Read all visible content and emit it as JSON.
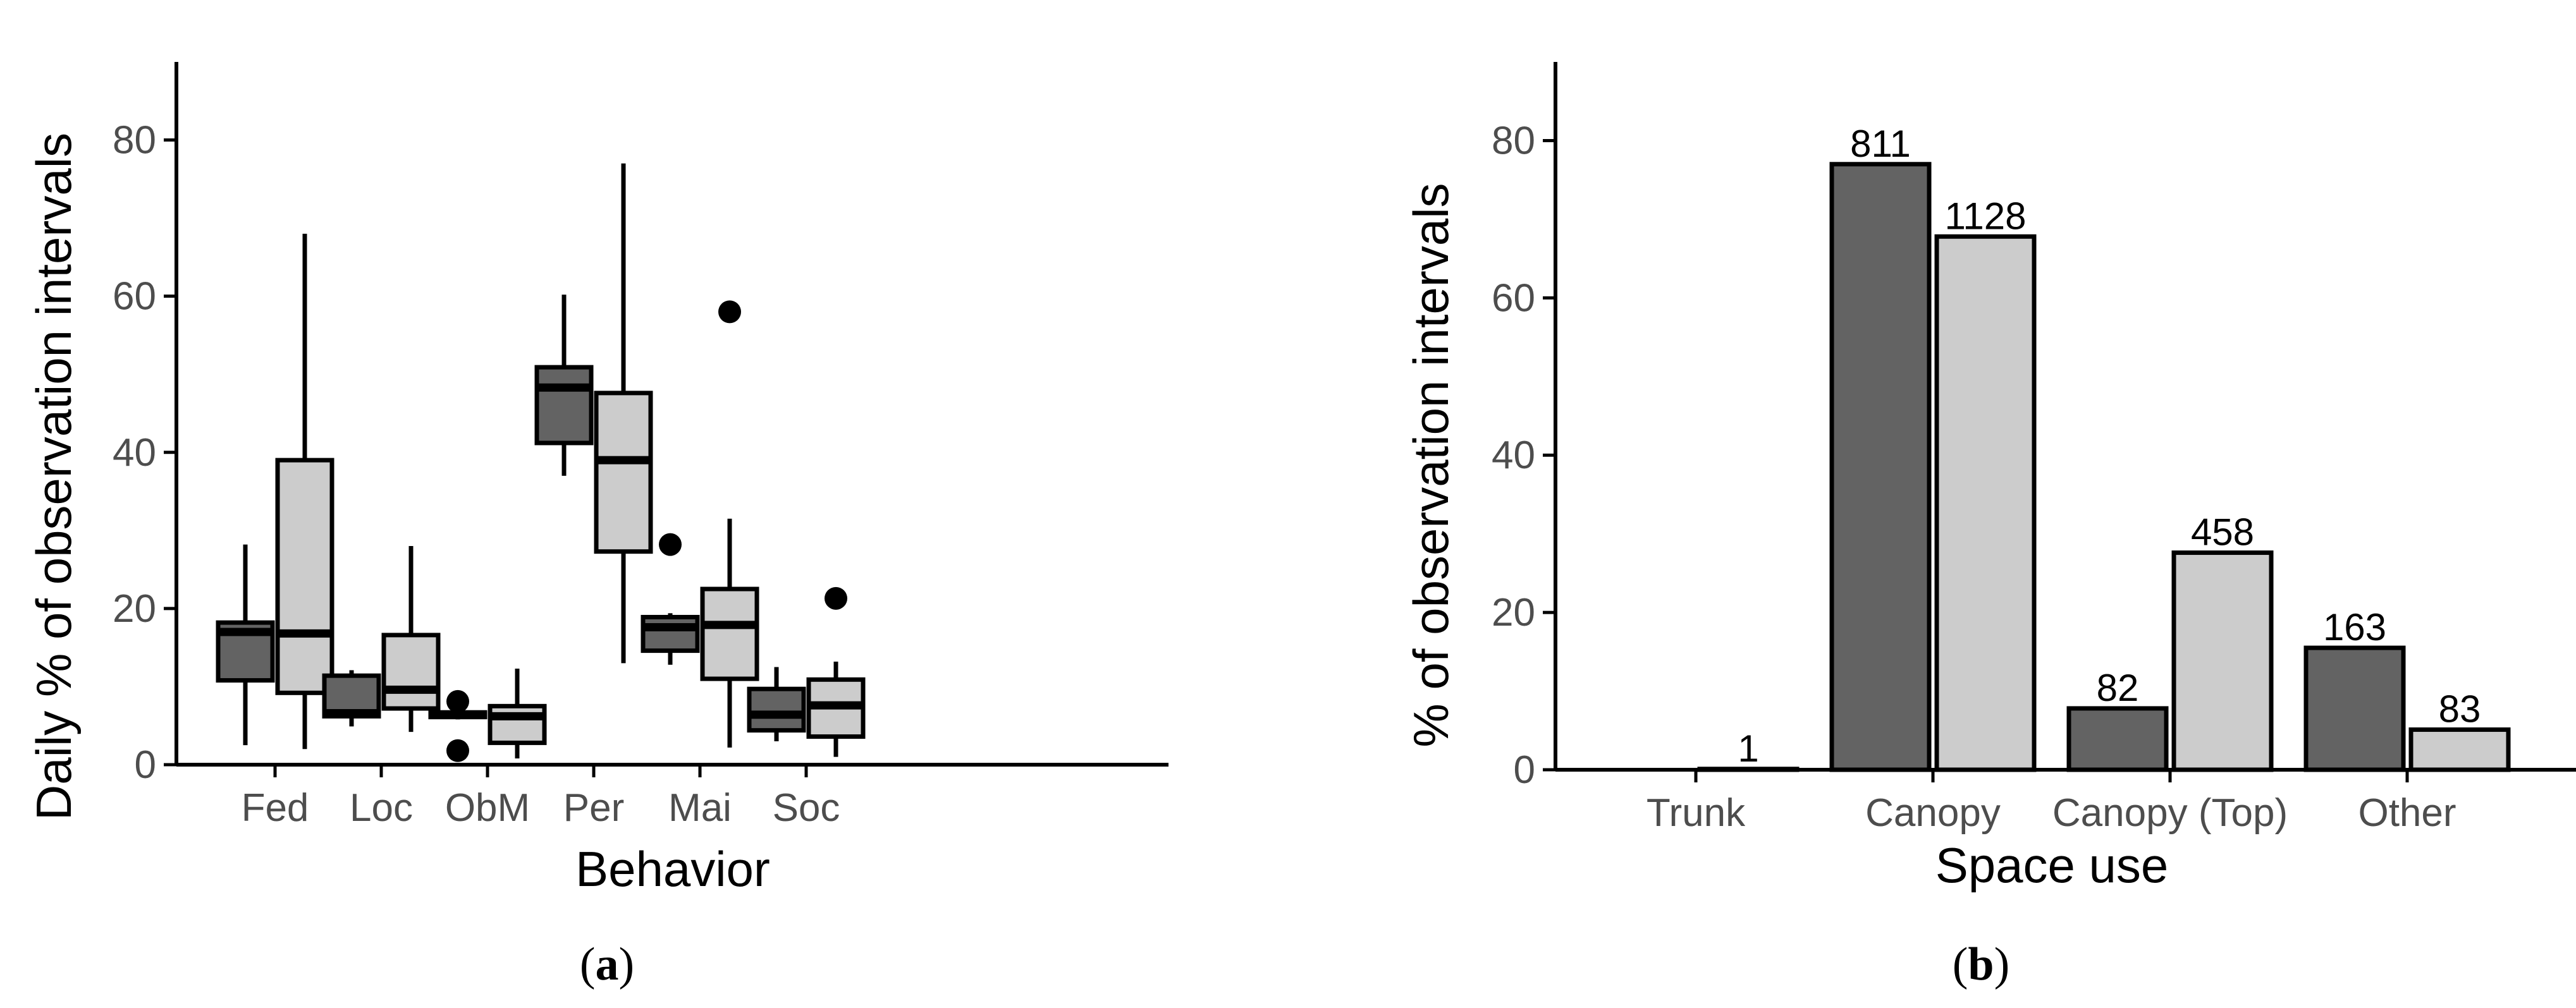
{
  "colors": {
    "group1": "#636363",
    "group2": "#cccccc"
  },
  "panels": [
    {
      "label_open": "(",
      "label_letter": "a",
      "label_close": ")"
    },
    {
      "label_open": "(",
      "label_letter": "b",
      "label_close": ")"
    }
  ],
  "chart_data": [
    {
      "type": "box",
      "xlabel": "Behavior",
      "ylabel": "Daily % of observation intervals",
      "ylim": [
        0,
        90
      ],
      "yticks": [
        0,
        20,
        40,
        60,
        80
      ],
      "categories": [
        "Fed",
        "Loc",
        "ObM",
        "Per",
        "Mai",
        "Soc"
      ],
      "grid": false,
      "series": [
        {
          "color": "#636363",
          "boxes": [
            {
              "min": 2.5,
              "q1": 10.8,
              "median": 17,
              "q3": 18.2,
              "max": 28.2,
              "outliers": []
            },
            {
              "min": 4.9,
              "q1": 6.2,
              "median": 6.6,
              "q3": 11.4,
              "max": 12.1,
              "outliers": []
            },
            {
              "min": 5.8,
              "q1": 6.1,
              "median": 6.4,
              "q3": 6.7,
              "max": 6.9,
              "outliers": [
                8.1,
                1.8
              ]
            },
            {
              "min": 37,
              "q1": 41.2,
              "median": 48.3,
              "q3": 50.9,
              "max": 60.2,
              "outliers": []
            },
            {
              "min": 12.8,
              "q1": 14.6,
              "median": 17.6,
              "q3": 18.9,
              "max": 19.4,
              "outliers": [
                28.2
              ]
            },
            {
              "min": 3,
              "q1": 4.4,
              "median": 6.4,
              "q3": 9.7,
              "max": 12.5,
              "outliers": []
            }
          ]
        },
        {
          "color": "#cccccc",
          "boxes": [
            {
              "min": 2,
              "q1": 9.2,
              "median": 16.8,
              "q3": 39,
              "max": 68,
              "outliers": []
            },
            {
              "min": 4.2,
              "q1": 7.2,
              "median": 9.6,
              "q3": 16.6,
              "max": 28,
              "outliers": []
            },
            {
              "min": 0.8,
              "q1": 2.8,
              "median": 6.2,
              "q3": 7.5,
              "max": 12.3,
              "outliers": []
            },
            {
              "min": 13,
              "q1": 27.3,
              "median": 39,
              "q3": 47.6,
              "max": 77,
              "outliers": []
            },
            {
              "min": 2.2,
              "q1": 11,
              "median": 17.9,
              "q3": 22.5,
              "max": 31.5,
              "outliers": [
                58
              ]
            },
            {
              "min": 1,
              "q1": 3.6,
              "median": 7.6,
              "q3": 10.9,
              "max": 13.2,
              "outliers": [
                21.3
              ]
            }
          ]
        }
      ]
    },
    {
      "type": "bar",
      "xlabel": "Space use",
      "ylabel": "% of observation intervals",
      "ylim": [
        0,
        90
      ],
      "yticks": [
        0,
        20,
        40,
        60,
        80
      ],
      "categories": [
        "Trunk",
        "Canopy",
        "Canopy (Top)",
        "Other"
      ],
      "grid": false,
      "series": [
        {
          "color": "#636363",
          "values": [
            null,
            77,
            7.8,
            15.5
          ],
          "labels": [
            "",
            "811",
            "82",
            "163"
          ]
        },
        {
          "color": "#cccccc",
          "values": [
            0.1,
            67.8,
            27.6,
            5.1
          ],
          "labels": [
            "1",
            "1128",
            "458",
            "83"
          ]
        }
      ]
    }
  ]
}
